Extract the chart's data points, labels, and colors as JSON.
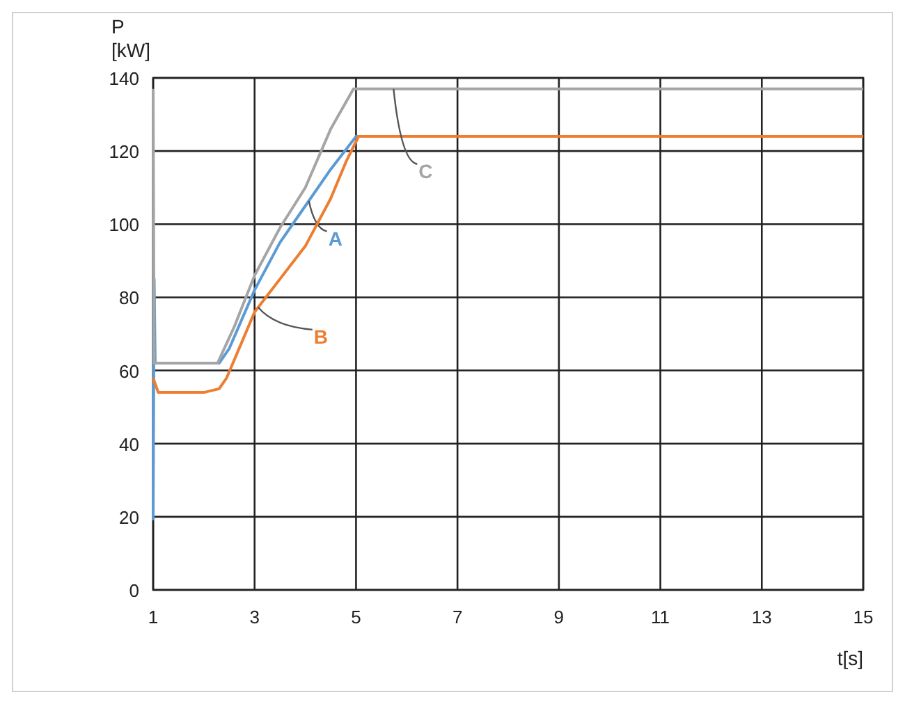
{
  "chart_data": {
    "type": "line",
    "xlabel": "t[s]",
    "ylabel": "P [kW]",
    "xlim": [
      1,
      15
    ],
    "xticks": [
      1,
      3,
      5,
      7,
      9,
      11,
      13,
      15
    ],
    "ylim": [
      0,
      140
    ],
    "yticks": [
      0,
      20,
      40,
      60,
      80,
      100,
      120,
      140
    ],
    "grid": true,
    "legend": false,
    "line_style": "solid",
    "marker": "none",
    "series": [
      {
        "name": "A",
        "color": "#5b9bd5",
        "x": [
          1,
          1.02,
          1.04,
          2.3,
          2.5,
          3,
          3.5,
          4,
          4.5,
          5,
          15
        ],
        "values": [
          19,
          85,
          62,
          62,
          66,
          82,
          95,
          105,
          115,
          124,
          124
        ]
      },
      {
        "name": "B",
        "color": "#ed7d31",
        "x": [
          1,
          1.1,
          2,
          2.3,
          2.45,
          3,
          3.5,
          4,
          4.5,
          4.8,
          5.05,
          15
        ],
        "values": [
          58,
          54,
          54,
          55,
          58,
          76,
          85,
          94,
          107,
          117,
          124,
          124
        ]
      },
      {
        "name": "C",
        "color": "#a5a5a5",
        "x": [
          1,
          1.02,
          2.27,
          2.6,
          3,
          3.5,
          4,
          4.5,
          4.95,
          15
        ],
        "values": [
          137,
          62,
          62,
          72,
          86,
          99,
          110,
          126,
          137,
          137
        ]
      }
    ]
  }
}
